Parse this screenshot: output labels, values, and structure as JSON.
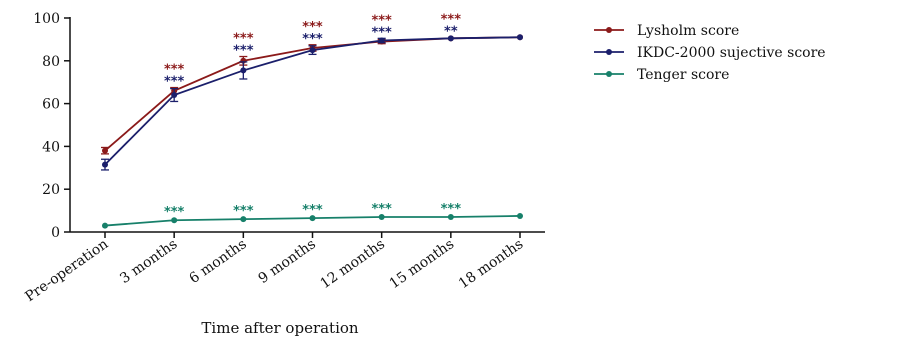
{
  "chart_data": {
    "type": "line",
    "title": "",
    "xlabel": "Time after operation",
    "ylabel": "",
    "categories": [
      "Pre-operation",
      "3 months",
      "6 months",
      "9 months",
      "12 months",
      "15 months",
      "18 months"
    ],
    "ylim": [
      0,
      100
    ],
    "yticks": [
      0,
      20,
      40,
      60,
      80,
      100
    ],
    "grid": false,
    "legend_position": "top-right",
    "series": [
      {
        "name": "Lysholm score",
        "color": "#8B1A1A",
        "values": [
          38,
          66,
          80,
          86,
          89,
          90.5,
          91
        ],
        "errors": [
          1.5,
          1.5,
          2,
          1.5,
          1,
          0.5,
          0.5
        ],
        "significance": [
          "",
          "***",
          "***",
          "***",
          "***",
          "***",
          ""
        ]
      },
      {
        "name": "IKDC-2000 sujective score",
        "color": "#1B1F6B",
        "values": [
          31.5,
          64,
          75.5,
          85,
          89.5,
          90.5,
          91
        ],
        "errors": [
          2.5,
          3,
          4,
          2,
          1,
          0.5,
          0.5
        ],
        "significance": [
          "",
          "***",
          "***",
          "***",
          "***",
          "**",
          ""
        ]
      },
      {
        "name": "Tenger score",
        "color": "#17806A",
        "values": [
          3,
          5.5,
          6,
          6.5,
          7,
          7,
          7.5
        ],
        "errors": [
          0.3,
          0.3,
          0.3,
          0.3,
          0.3,
          0.3,
          0.3
        ],
        "significance": [
          "",
          "***",
          "***",
          "***",
          "***",
          "***",
          ""
        ]
      }
    ]
  }
}
